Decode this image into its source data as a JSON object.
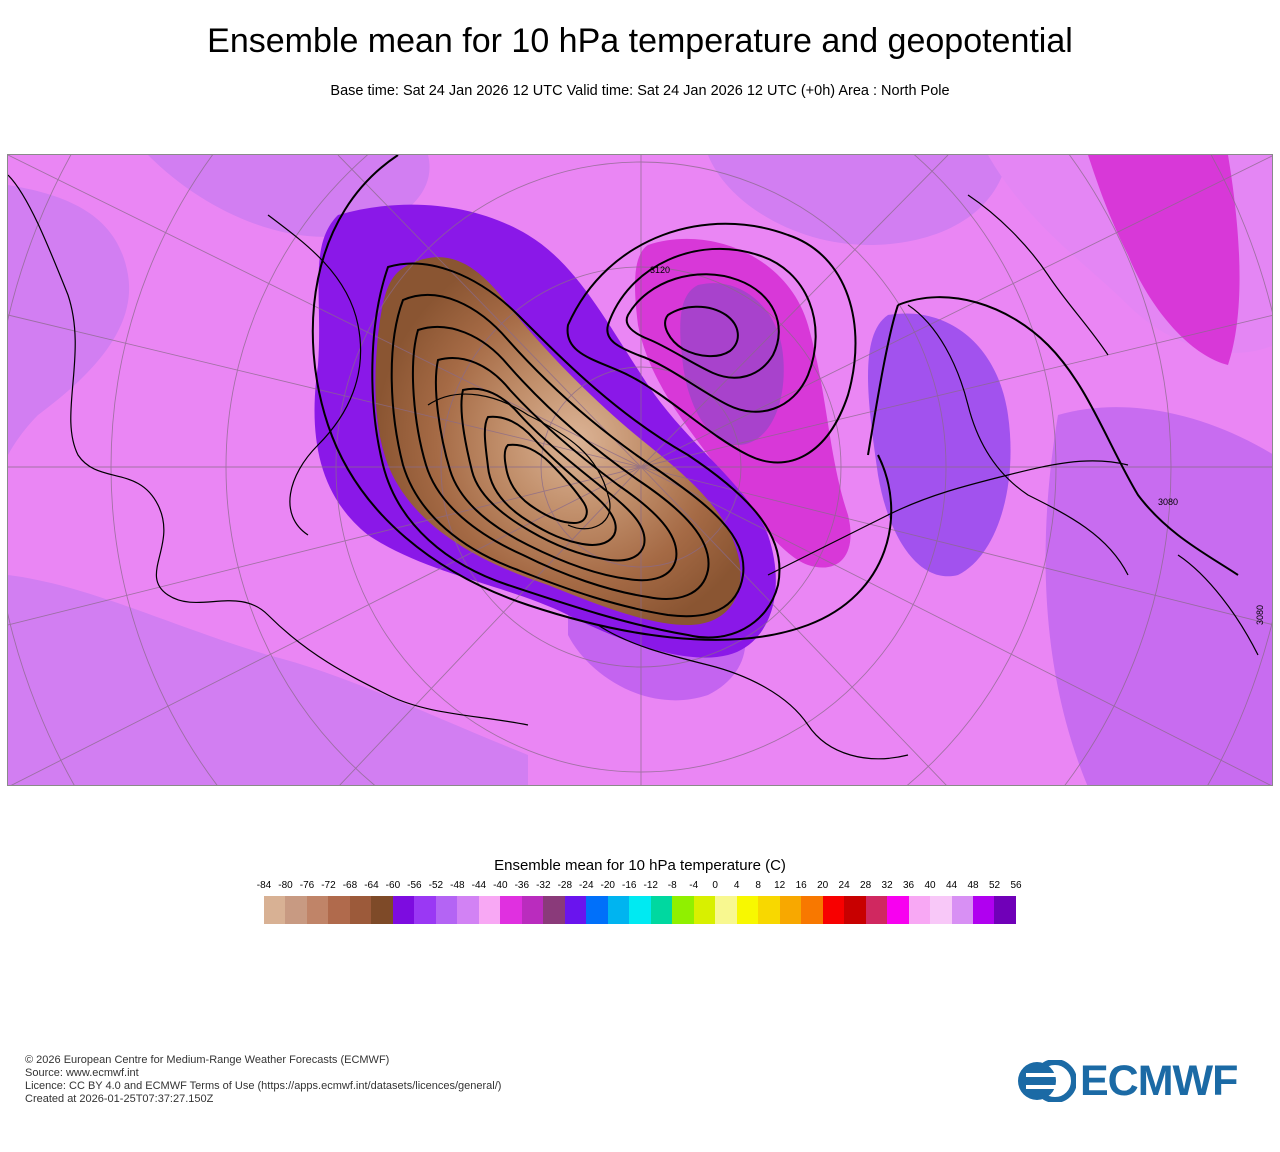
{
  "header": {
    "title": "Ensemble mean for 10 hPa temperature and geopotential",
    "subtitle": "Base time: Sat 24 Jan 2026 12 UTC Valid time: Sat 24 Jan 2026 12 UTC (+0h) Area : North Pole"
  },
  "map": {
    "contour_labels": [
      "3120",
      "3080",
      "3080"
    ],
    "colors": {
      "background_pink": "#ea86f4",
      "light_violet": "#d27ef2",
      "violet": "#b45cf0",
      "deep_violet": "#8a18e8",
      "magenta": "#d838d8",
      "cold_core_dark": "#7e4a28",
      "cold_core_mid": "#a56a45",
      "cold_core_light": "#d6ab88",
      "contour": "#000000",
      "graticule": "#8a6a8a"
    }
  },
  "legend": {
    "title": "Ensemble mean for 10 hPa temperature (C)",
    "ticks": [
      "-84",
      "-80",
      "-76",
      "-72",
      "-68",
      "-64",
      "-60",
      "-56",
      "-52",
      "-48",
      "-44",
      "-40",
      "-36",
      "-32",
      "-28",
      "-24",
      "-20",
      "-16",
      "-12",
      "-8",
      "-4",
      "0",
      "4",
      "8",
      "12",
      "16",
      "20",
      "24",
      "28",
      "32",
      "36",
      "40",
      "44",
      "48",
      "52",
      "56"
    ],
    "colors": [
      "#d8b194",
      "#c89a82",
      "#c08468",
      "#b06a4c",
      "#9c5a3a",
      "#7e4a28",
      "#7d0ce0",
      "#9a38f4",
      "#b464f4",
      "#d282f4",
      "#f8a8f4",
      "#e030e0",
      "#ba2cbe",
      "#8a3a7a",
      "#6a14ee",
      "#0070fa",
      "#00b4f0",
      "#00eaf2",
      "#00d8a0",
      "#90f000",
      "#d8f000",
      "#f8f890",
      "#f8f800",
      "#f8d800",
      "#f8a800",
      "#f87800",
      "#f80000",
      "#c80000",
      "#d02860",
      "#f800f0",
      "#f8a8f4",
      "#f8c8f8",
      "#d890f4",
      "#b000f0",
      "#7000b8"
    ]
  },
  "footer": {
    "line1": "© 2026 European Centre for Medium-Range Weather Forecasts (ECMWF)",
    "line2": "Source: www.ecmwf.int",
    "line3": "Licence: CC BY 4.0 and ECMWF Terms of Use (https://apps.ecmwf.int/datasets/licences/general/)",
    "line4": "Created at 2026-01-25T07:37:27.150Z"
  },
  "logo": {
    "text": "ECMWF",
    "color": "#1b6aa5"
  }
}
